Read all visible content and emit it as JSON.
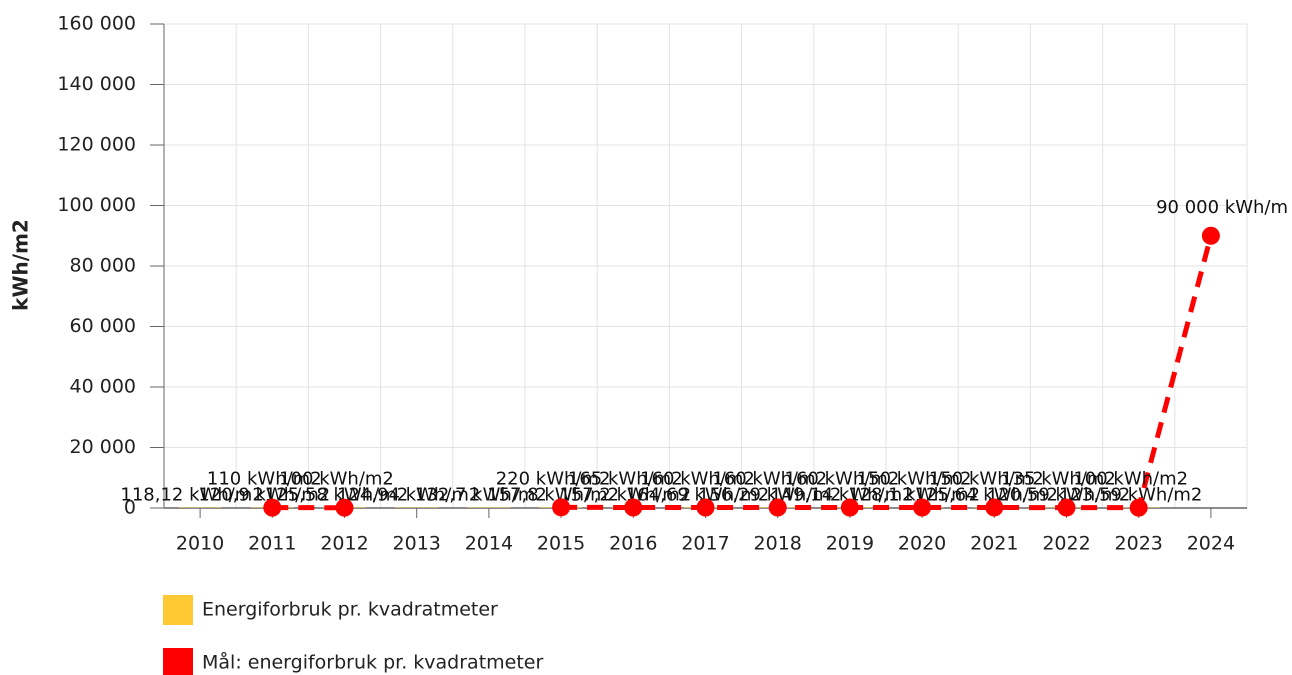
{
  "chart_data": {
    "type": "combo",
    "y_label": "kWh/m2",
    "categories": [
      "2010",
      "2011",
      "2012",
      "2013",
      "2014",
      "2015",
      "2016",
      "2017",
      "2018",
      "2019",
      "2020",
      "2021",
      "2022",
      "2023",
      "2024"
    ],
    "ylim": [
      0,
      160000
    ],
    "yticks": [
      0,
      {
        "value": 20000,
        "label": "20 000"
      },
      {
        "value": 40000,
        "label": "40 000"
      },
      {
        "value": 60000,
        "label": "60 000"
      },
      {
        "value": 80000,
        "label": "80 000"
      },
      {
        "value": 100000,
        "label": "100 000"
      },
      {
        "value": 120000,
        "label": "120 000"
      },
      {
        "value": 140000,
        "label": "140 000"
      },
      {
        "value": 160000,
        "label": "160 000"
      }
    ],
    "grid": true,
    "legend": "bottom-left",
    "series": [
      {
        "name": "Energiforbruk pr. kvadratmeter",
        "type": "bar",
        "color": "#ffc933",
        "values": [
          118.12,
          120.9,
          125.58,
          124.94,
          132.7,
          157.8,
          157.2,
          164.69,
          156.29,
          149.14,
          128.1,
          125.64,
          120.59,
          123.59,
          null
        ],
        "value_labels": [
          "118,12 kWh/m2",
          "120,9 kWh/m2",
          "125,58 kWh/m2",
          "124,94 kWh/m2",
          "132,7 kWh/m2",
          "157,8 kWh/m2",
          "157,2 kWh/m2",
          "164,69 kWh/m2",
          "156,29 kWh/m2",
          "149,14 kWh/m2",
          "128,1 kWh/m2",
          "125,64 kWh/m2",
          "120,59 kWh/m2",
          "123,59 kWh/m2",
          null
        ]
      },
      {
        "name": "Mål: energiforbruk pr. kvadratmeter",
        "type": "line",
        "color": "#ff0000",
        "values": [
          null,
          110,
          100,
          null,
          null,
          220,
          165,
          160,
          160,
          160,
          150,
          150,
          135,
          100,
          90000
        ],
        "value_labels": [
          null,
          "110 kWh/m2",
          "100 kWh/m2",
          null,
          null,
          "220 kWh/m2",
          "165 kWh/m2",
          "160 kWh/m2",
          "160 kWh/m2",
          "160 kWh/m2",
          "150 kWh/m2",
          "150 kWh/m2",
          "135 kWh/m2",
          "100 kWh/m2",
          "90 000 kWh/m"
        ]
      }
    ]
  }
}
